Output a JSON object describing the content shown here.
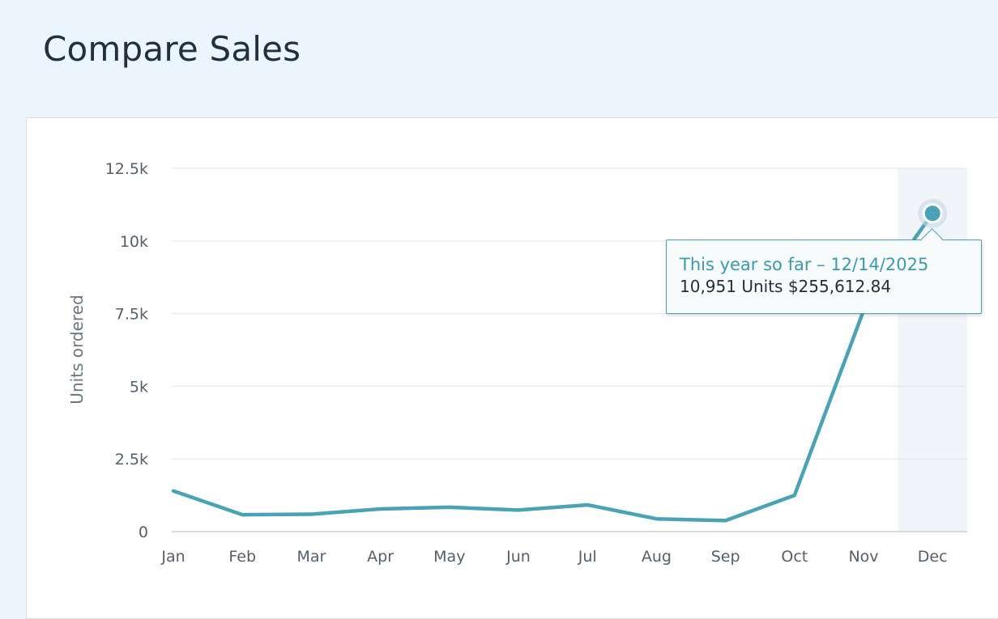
{
  "page": {
    "title": "Compare Sales"
  },
  "chart_data": {
    "type": "line",
    "ylabel": "Units ordered",
    "categories": [
      "Jan",
      "Feb",
      "Mar",
      "Apr",
      "May",
      "Jun",
      "Jul",
      "Aug",
      "Sep",
      "Oct",
      "Nov",
      "Dec"
    ],
    "y_ticks": [
      {
        "value": 0,
        "label": "0"
      },
      {
        "value": 2500,
        "label": "2.5k"
      },
      {
        "value": 5000,
        "label": "5k"
      },
      {
        "value": 7500,
        "label": "7.5k"
      },
      {
        "value": 10000,
        "label": "10k"
      },
      {
        "value": 12500,
        "label": "12.5k"
      }
    ],
    "ylim": [
      0,
      12500
    ],
    "grid": true,
    "series": [
      {
        "name": "This year so far",
        "color": "#4aa3b4",
        "values": [
          1400,
          580,
          600,
          780,
          840,
          740,
          920,
          440,
          380,
          1250,
          7600,
          10951
        ]
      }
    ],
    "highlighted_category": "Dec",
    "tooltip": {
      "title": "This year so far – 12/14/2025",
      "body": "10,951 Units $255,612.84"
    }
  }
}
